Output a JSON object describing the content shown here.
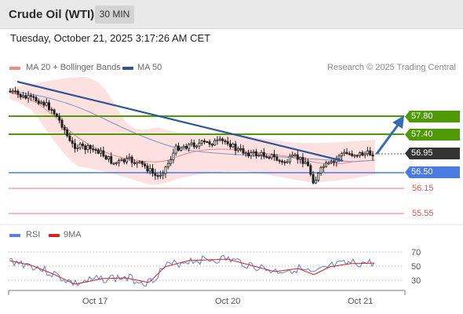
{
  "header": {
    "title": "Crude Oil (WTI)",
    "timeframe": "30 MIN"
  },
  "datetime": "Tuesday, October 21, 2025 3:17:26 AM CET",
  "legend": {
    "ma20_label": "MA 20 + Bollinger Bands",
    "ma50_label": "MA 50",
    "copyright": "Research © 2025 Trading Central",
    "rsi_label": "RSI",
    "ma9_label": "9MA"
  },
  "colors": {
    "resistance": "#4e9a06",
    "support": "#4a7be0",
    "target_low": "#e87a72",
    "current": "#333333",
    "trend": "#2f5597",
    "bollinger": "#fbd5d3",
    "rsi": "#5b80d9",
    "rsi_ma": "#d91e1e"
  },
  "levels": {
    "r2": "57.80",
    "r1": "57.40",
    "current": "56.95",
    "s1": "56.50",
    "s2": "56.15",
    "s3": "55.55"
  },
  "rsi_axis": {
    "t70": "70",
    "t50": "50",
    "t30": "30"
  },
  "x_axis": {
    "d1": "Oct 17",
    "d2": "Oct 20",
    "d3": "Oct 21"
  }
}
